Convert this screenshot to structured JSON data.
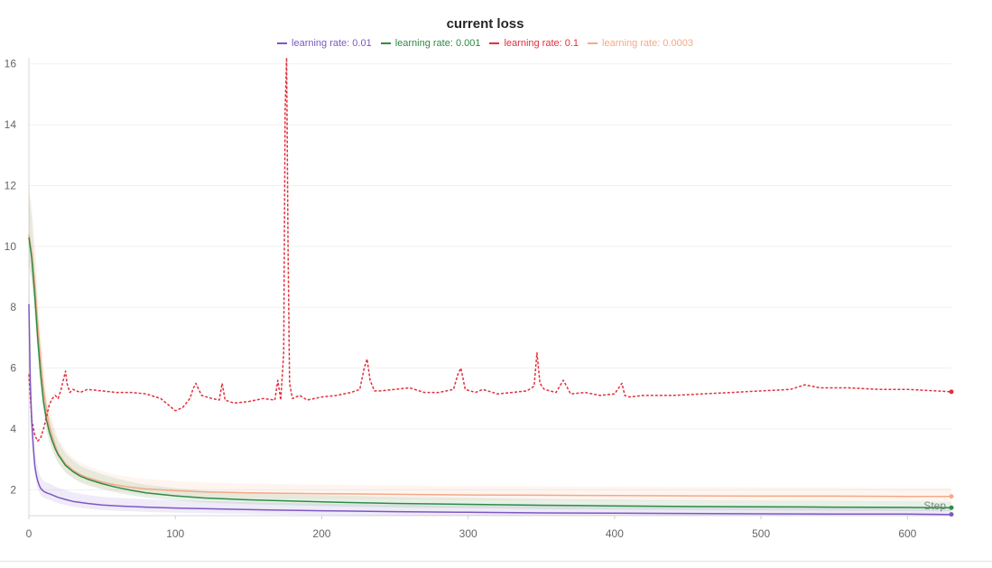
{
  "chart_data": {
    "type": "line",
    "title": "current loss",
    "xlabel": "Step",
    "ylabel": "",
    "xlim": [
      0,
      630
    ],
    "ylim": [
      1.15,
      16.2
    ],
    "xticks": [
      0,
      100,
      200,
      300,
      400,
      500,
      600
    ],
    "yticks": [
      2,
      4,
      6,
      8,
      10,
      12,
      14,
      16
    ],
    "grid": true,
    "legend_position": "top-center",
    "series": [
      {
        "name": "learning_rate: 0.01",
        "label": "learning  rate: 0.01",
        "color": "#7e57c2",
        "dash": false,
        "x": [
          0,
          1,
          2,
          3,
          4,
          5,
          6,
          7,
          8,
          10,
          12,
          15,
          20,
          25,
          30,
          40,
          50,
          60,
          80,
          100,
          130,
          160,
          200,
          250,
          300,
          350,
          400,
          450,
          500,
          550,
          600,
          630
        ],
        "y": [
          8.1,
          5.5,
          4.2,
          3.4,
          2.8,
          2.5,
          2.3,
          2.15,
          2.05,
          1.95,
          1.9,
          1.85,
          1.75,
          1.68,
          1.62,
          1.55,
          1.5,
          1.47,
          1.43,
          1.4,
          1.37,
          1.34,
          1.31,
          1.28,
          1.26,
          1.24,
          1.23,
          1.22,
          1.21,
          1.2,
          1.2,
          1.19
        ]
      },
      {
        "name": "learning_rate: 0.001",
        "label": "learning  rate: 0.001",
        "color": "#2e8b45",
        "dash": false,
        "x": [
          0,
          2,
          4,
          6,
          8,
          10,
          12,
          14,
          16,
          18,
          20,
          25,
          30,
          35,
          40,
          50,
          60,
          70,
          80,
          100,
          120,
          150,
          200,
          250,
          300,
          350,
          400,
          450,
          500,
          550,
          600,
          630
        ],
        "y": [
          10.3,
          9.6,
          8.4,
          7.0,
          5.8,
          4.9,
          4.3,
          3.9,
          3.6,
          3.35,
          3.15,
          2.8,
          2.6,
          2.45,
          2.35,
          2.2,
          2.08,
          1.98,
          1.9,
          1.8,
          1.73,
          1.67,
          1.6,
          1.55,
          1.52,
          1.49,
          1.47,
          1.45,
          1.44,
          1.43,
          1.42,
          1.41
        ]
      },
      {
        "name": "learning_rate: 0.1",
        "label": "learning  rate: 0.1",
        "color": "#e0303d",
        "dash": true,
        "x": [
          0,
          2,
          4,
          6,
          8,
          10,
          12,
          14,
          16,
          18,
          20,
          22,
          24,
          25,
          26,
          28,
          30,
          35,
          40,
          50,
          60,
          70,
          80,
          90,
          95,
          100,
          105,
          110,
          112,
          114,
          118,
          125,
          130,
          132,
          134,
          140,
          150,
          160,
          168,
          170,
          172,
          174,
          175,
          176,
          177,
          178,
          180,
          185,
          190,
          200,
          210,
          220,
          226,
          229,
          231,
          233,
          236,
          240,
          250,
          260,
          270,
          280,
          290,
          293,
          295,
          298,
          305,
          310,
          320,
          330,
          340,
          345,
          347,
          349,
          352,
          360,
          365,
          370,
          380,
          390,
          400,
          405,
          407,
          410,
          420,
          440,
          460,
          480,
          500,
          520,
          530,
          540,
          560,
          580,
          600,
          620,
          630
        ],
        "y": [
          5.8,
          4.3,
          3.8,
          3.6,
          3.7,
          4.0,
          4.4,
          4.8,
          5.0,
          5.1,
          5.0,
          5.3,
          5.7,
          5.9,
          5.5,
          5.2,
          5.3,
          5.2,
          5.3,
          5.25,
          5.2,
          5.2,
          5.15,
          5.0,
          4.8,
          4.6,
          4.7,
          5.0,
          5.3,
          5.5,
          5.1,
          5.0,
          4.95,
          5.5,
          4.95,
          4.85,
          4.9,
          5.0,
          4.95,
          5.6,
          4.95,
          6.5,
          14.5,
          16.2,
          10.0,
          5.5,
          5.0,
          5.1,
          4.95,
          5.05,
          5.1,
          5.2,
          5.3,
          6.0,
          6.3,
          5.6,
          5.25,
          5.25,
          5.3,
          5.35,
          5.2,
          5.2,
          5.3,
          5.8,
          6.0,
          5.3,
          5.2,
          5.3,
          5.15,
          5.2,
          5.25,
          5.4,
          6.5,
          5.5,
          5.3,
          5.2,
          5.6,
          5.15,
          5.2,
          5.1,
          5.15,
          5.5,
          5.1,
          5.05,
          5.1,
          5.1,
          5.15,
          5.2,
          5.25,
          5.3,
          5.45,
          5.35,
          5.35,
          5.3,
          5.3,
          5.25,
          5.22
        ]
      },
      {
        "name": "learning_rate: 0.0003",
        "label": "learning  rate: 0.0003",
        "color": "#f4a987",
        "dash": false,
        "x": [
          0,
          2,
          4,
          6,
          8,
          10,
          12,
          14,
          16,
          18,
          20,
          25,
          30,
          35,
          40,
          50,
          60,
          70,
          80,
          100,
          120,
          150,
          200,
          250,
          300,
          350,
          400,
          450,
          500,
          550,
          600,
          630
        ],
        "y": [
          10.4,
          9.8,
          8.8,
          7.5,
          6.3,
          5.3,
          4.6,
          4.1,
          3.75,
          3.45,
          3.2,
          2.85,
          2.65,
          2.5,
          2.4,
          2.25,
          2.15,
          2.08,
          2.03,
          1.97,
          1.93,
          1.9,
          1.87,
          1.85,
          1.83,
          1.82,
          1.81,
          1.8,
          1.79,
          1.79,
          1.78,
          1.78
        ]
      }
    ]
  }
}
